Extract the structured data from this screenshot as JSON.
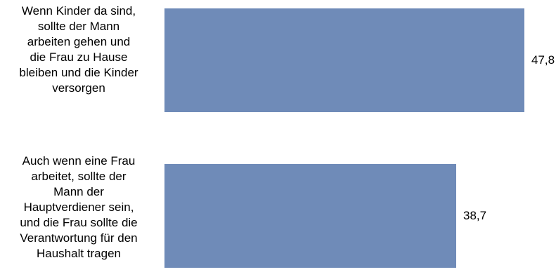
{
  "chart_data": {
    "type": "bar",
    "orientation": "horizontal",
    "categories": [
      "Wenn Kinder da sind,\nsollte der Mann\narbeiten gehen und\ndie Frau zu Hause\nbleiben und die Kinder\nversorgen",
      "Auch wenn eine Frau\narbeitet, sollte der\nMann der\nHauptverdiener sein,\nund die Frau sollte die\nVerantwortung für den\nHaushalt tragen"
    ],
    "values": [
      47.8,
      38.7
    ],
    "value_labels": [
      "47,8",
      "38,7"
    ],
    "bar_color": "#6f8bb8",
    "xlim": [
      0,
      48.5
    ],
    "grid": false,
    "legend": "none"
  }
}
